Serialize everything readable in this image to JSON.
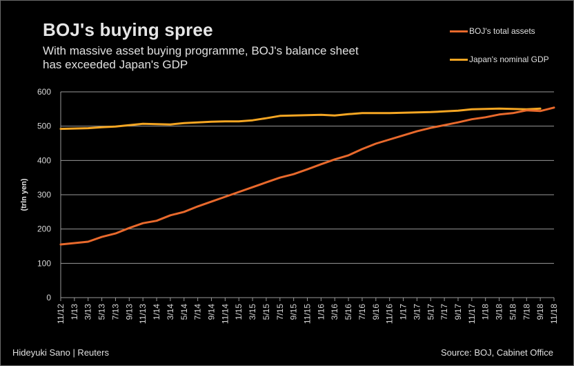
{
  "header": {
    "title": "BOJ's  buying spree",
    "subtitle": "With massive asset buying programme, BOJ's balance sheet has exceeded Japan's GDP"
  },
  "footer": {
    "credit": "Hideyuki Sano | Reuters",
    "source": "Source: BOJ, Cabinet  Office"
  },
  "colors": {
    "background": "#000000",
    "boj_assets": "#e8692c",
    "gdp": "#f5a623",
    "grid": "#9a9a9a"
  },
  "chart_data": {
    "type": "line",
    "title": "BOJ's buying spree",
    "xlabel": "",
    "ylabel": "(trln yen)",
    "ylim": [
      0,
      600
    ],
    "yticks": [
      0,
      100,
      200,
      300,
      400,
      500,
      600
    ],
    "grid": true,
    "legend_position": "top-right",
    "x": [
      "11/12",
      "1/13",
      "3/13",
      "5/13",
      "7/13",
      "9/13",
      "11/13",
      "1/14",
      "3/14",
      "5/14",
      "7/14",
      "9/14",
      "11/14",
      "1/15",
      "3/15",
      "5/15",
      "7/15",
      "9/15",
      "11/15",
      "1/16",
      "3/16",
      "5/16",
      "7/16",
      "9/16",
      "11/16",
      "1/17",
      "3/17",
      "5/17",
      "7/17",
      "9/17",
      "11/17",
      "1/18",
      "3/18",
      "5/18",
      "7/18",
      "9/18",
      "11/18"
    ],
    "series": [
      {
        "name": "BOJ's total assets",
        "color": "#e8692c",
        "values": [
          155,
          159,
          163,
          177,
          187,
          203,
          217,
          224,
          240,
          250,
          266,
          280,
          294,
          308,
          322,
          336,
          350,
          360,
          374,
          389,
          403,
          415,
          433,
          449,
          461,
          473,
          485,
          495,
          503,
          511,
          520,
          526,
          534,
          538,
          546,
          544,
          554
        ]
      },
      {
        "name": "Japan's nominal GDP",
        "color": "#f5a623",
        "values": [
          492,
          493,
          494,
          497,
          499,
          503,
          507,
          506,
          505,
          509,
          511,
          513,
          514,
          514,
          517,
          523,
          530,
          531,
          532,
          533,
          531,
          535,
          538,
          538,
          538,
          539,
          540,
          541,
          543,
          545,
          549,
          550,
          551,
          550,
          549,
          551,
          null
        ]
      }
    ]
  }
}
